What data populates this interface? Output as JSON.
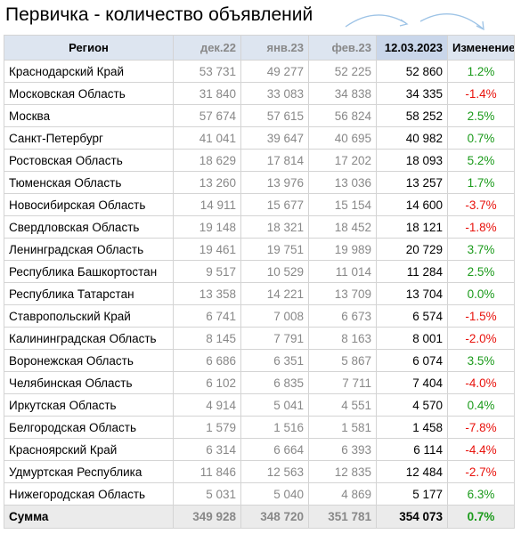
{
  "title": "Первичка - количество объявлений",
  "columns": {
    "region": "Регион",
    "dec": "дек.22",
    "jan": "янв.23",
    "feb": "фев.23",
    "current": "12.03.2023",
    "change": "Изменение"
  },
  "rows": [
    {
      "region": "Краснодарский Край",
      "dec": "53 731",
      "jan": "49 277",
      "feb": "52 225",
      "current": "52 860",
      "change": "1.2%"
    },
    {
      "region": "Московская Область",
      "dec": "31 840",
      "jan": "33 083",
      "feb": "34 838",
      "current": "34 335",
      "change": "-1.4%"
    },
    {
      "region": "Москва",
      "dec": "57 674",
      "jan": "57 615",
      "feb": "56 824",
      "current": "58 252",
      "change": "2.5%"
    },
    {
      "region": "Санкт-Петербург",
      "dec": "41 041",
      "jan": "39 647",
      "feb": "40 695",
      "current": "40 982",
      "change": "0.7%"
    },
    {
      "region": "Ростовская Область",
      "dec": "18 629",
      "jan": "17 814",
      "feb": "17 202",
      "current": "18 093",
      "change": "5.2%"
    },
    {
      "region": "Тюменская Область",
      "dec": "13 260",
      "jan": "13 976",
      "feb": "13 036",
      "current": "13 257",
      "change": "1.7%"
    },
    {
      "region": "Новосибирская Область",
      "dec": "14 911",
      "jan": "15 677",
      "feb": "15 154",
      "current": "14 600",
      "change": "-3.7%"
    },
    {
      "region": "Свердловская Область",
      "dec": "19 148",
      "jan": "18 321",
      "feb": "18 452",
      "current": "18 121",
      "change": "-1.8%"
    },
    {
      "region": "Ленинградская Область",
      "dec": "19 461",
      "jan": "19 751",
      "feb": "19 989",
      "current": "20 729",
      "change": "3.7%"
    },
    {
      "region": "Республика Башкортостан",
      "dec": "9 517",
      "jan": "10 529",
      "feb": "11 014",
      "current": "11 284",
      "change": "2.5%"
    },
    {
      "region": "Республика Татарстан",
      "dec": "13 358",
      "jan": "14 221",
      "feb": "13 709",
      "current": "13 704",
      "change": "0.0%"
    },
    {
      "region": "Ставропольский Край",
      "dec": "6 741",
      "jan": "7 008",
      "feb": "6 673",
      "current": "6 574",
      "change": "-1.5%"
    },
    {
      "region": "Калининградская Область",
      "dec": "8 145",
      "jan": "7 791",
      "feb": "8 163",
      "current": "8 001",
      "change": "-2.0%"
    },
    {
      "region": "Воронежская Область",
      "dec": "6 686",
      "jan": "6 351",
      "feb": "5 867",
      "current": "6 074",
      "change": "3.5%"
    },
    {
      "region": "Челябинская Область",
      "dec": "6 102",
      "jan": "6 835",
      "feb": "7 711",
      "current": "7 404",
      "change": "-4.0%"
    },
    {
      "region": "Иркутская Область",
      "dec": "4 914",
      "jan": "5 041",
      "feb": "4 551",
      "current": "4 570",
      "change": "0.4%"
    },
    {
      "region": "Белгородская Область",
      "dec": "1 579",
      "jan": "1 516",
      "feb": "1 581",
      "current": "1 458",
      "change": "-7.8%"
    },
    {
      "region": "Красноярский Край",
      "dec": "6 314",
      "jan": "6 664",
      "feb": "6 393",
      "current": "6 114",
      "change": "-4.4%"
    },
    {
      "region": "Удмуртская Республика",
      "dec": "11 846",
      "jan": "12 563",
      "feb": "12 835",
      "current": "12 484",
      "change": "-2.7%"
    },
    {
      "region": "Нижегородская Область",
      "dec": "5 031",
      "jan": "5 040",
      "feb": "4 869",
      "current": "5 177",
      "change": "6.3%"
    }
  ],
  "total": {
    "region": "Сумма",
    "dec": "349 928",
    "jan": "348 720",
    "feb": "351 781",
    "current": "354 073",
    "change": "0.7%"
  },
  "colors": {
    "header_bg": "#dde5f0",
    "current_header_bg": "#c9d6ea",
    "month_text": "#888888",
    "negative": "#e8120c",
    "positive": "#1a9a1a",
    "total_bg": "#ebebeb",
    "arrow": "#9dc3e6"
  },
  "icons": [
    "curved-arrow-icon",
    "curved-arrow-icon"
  ]
}
